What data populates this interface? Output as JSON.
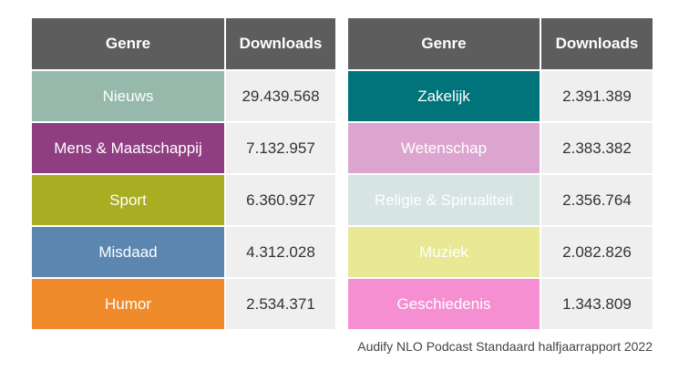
{
  "chart_data": {
    "type": "table",
    "columns": [
      "Genre",
      "Downloads"
    ],
    "tables": [
      {
        "header": {
          "genre": "Genre",
          "downloads": "Downloads"
        },
        "rows": [
          {
            "genre": "Nieuws",
            "downloads": "29.439.568",
            "color": "#96b9ac"
          },
          {
            "genre": "Mens & Maatschappij",
            "downloads": "7.132.957",
            "color": "#8f3e82"
          },
          {
            "genre": "Sport",
            "downloads": "6.360.927",
            "color": "#a9ad21"
          },
          {
            "genre": "Misdaad",
            "downloads": "4.312.028",
            "color": "#5b86b0"
          },
          {
            "genre": "Humor",
            "downloads": "2.534.371",
            "color": "#ef8b2b"
          }
        ]
      },
      {
        "header": {
          "genre": "Genre",
          "downloads": "Downloads"
        },
        "rows": [
          {
            "genre": "Zakelijk",
            "downloads": "2.391.389",
            "color": "#01737a"
          },
          {
            "genre": "Wetenschap",
            "downloads": "2.383.382",
            "color": "#dba5cf"
          },
          {
            "genre": "Religie & Spirualiteit",
            "downloads": "2.356.764",
            "color": "#d6e4e2"
          },
          {
            "genre": "Muziek",
            "downloads": "2.082.826",
            "color": "#e8e895"
          },
          {
            "genre": "Geschiedenis",
            "downloads": "1.343.809",
            "color": "#f58fd1"
          }
        ]
      }
    ]
  },
  "source": "Audify NLO Podcast Standaard halfjaarrapport 2022"
}
